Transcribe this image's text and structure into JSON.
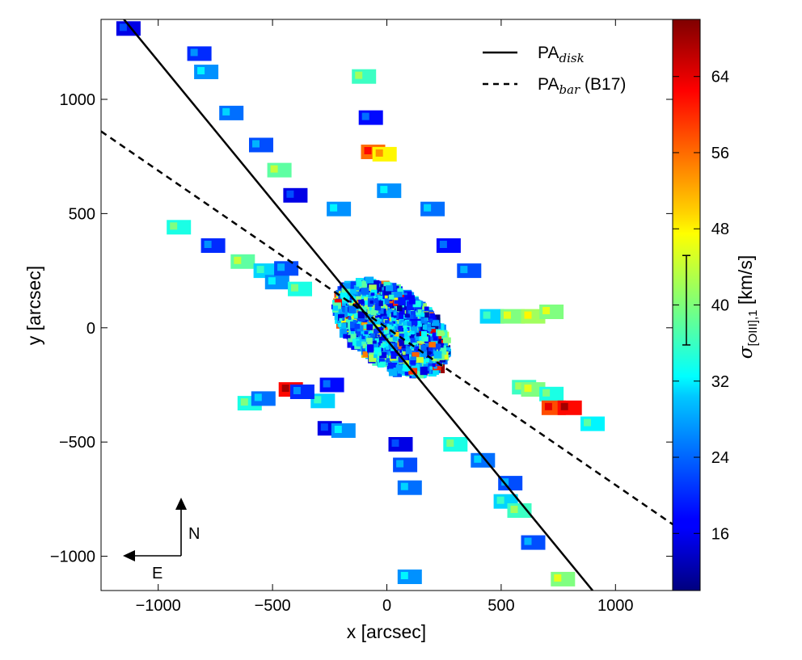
{
  "chart_data": {
    "type": "scatter",
    "title": "",
    "xlabel": "x [arcsec]",
    "ylabel": "y [arcsec]",
    "xlim": [
      -1250,
      1250
    ],
    "ylim": [
      -1150,
      1350
    ],
    "xticks": [
      -1000,
      -500,
      0,
      500,
      1000
    ],
    "xtick_labels": [
      "−1000",
      "−500",
      "0",
      "500",
      "1000"
    ],
    "yticks": [
      -1000,
      -500,
      0,
      500,
      1000
    ],
    "ytick_labels": [
      "−1000",
      "−500",
      "0",
      "500",
      "1000"
    ],
    "grid": false,
    "legend_position": "top-right",
    "lines": [
      {
        "label_main": "PA",
        "label_sub": "disk",
        "style": "solid",
        "color": "#000000",
        "x": [
          -1150,
          900
        ],
        "y": [
          1350,
          -1150
        ]
      },
      {
        "label_main": "PA",
        "label_sub": "bar",
        "label_suffix": " (B17)",
        "style": "dashed",
        "color": "#000000",
        "x": [
          -1250,
          1250
        ],
        "y": [
          860,
          -860
        ]
      }
    ],
    "colorbar": {
      "label_main": "σ",
      "label_sub": "[OIII],1",
      "label_unit": " [km/s]",
      "range": [
        10,
        70
      ],
      "ticks": [
        16,
        24,
        32,
        40,
        48,
        56,
        64
      ],
      "tick_labels": [
        "16",
        "24",
        "32",
        "40",
        "48",
        "56",
        "64"
      ],
      "colormap": "jet",
      "error_bar": {
        "center": 40.5,
        "low": 35.8,
        "high": 45.2
      }
    },
    "outer_tiles": [
      {
        "x": -1130,
        "y": 1310,
        "v": 16
      },
      {
        "x": -820,
        "y": 1200,
        "v": 20
      },
      {
        "x": -790,
        "y": 1120,
        "v": 26
      },
      {
        "x": -680,
        "y": 940,
        "v": 24
      },
      {
        "x": -550,
        "y": 800,
        "v": 22
      },
      {
        "x": -470,
        "y": 690,
        "v": 38
      },
      {
        "x": -400,
        "y": 580,
        "v": 16
      },
      {
        "x": -910,
        "y": 440,
        "v": 34
      },
      {
        "x": -760,
        "y": 360,
        "v": 20
      },
      {
        "x": -630,
        "y": 290,
        "v": 38
      },
      {
        "x": -530,
        "y": 250,
        "v": 30
      },
      {
        "x": -480,
        "y": 200,
        "v": 26
      },
      {
        "x": -440,
        "y": 260,
        "v": 22
      },
      {
        "x": -380,
        "y": 170,
        "v": 34
      },
      {
        "x": -600,
        "y": -330,
        "v": 34
      },
      {
        "x": -540,
        "y": -310,
        "v": 24
      },
      {
        "x": -280,
        "y": -320,
        "v": 30
      },
      {
        "x": -240,
        "y": -250,
        "v": 18
      },
      {
        "x": -420,
        "y": -270,
        "v": 62
      },
      {
        "x": -370,
        "y": -280,
        "v": 20
      },
      {
        "x": -250,
        "y": -440,
        "v": 16
      },
      {
        "x": -190,
        "y": -450,
        "v": 26
      },
      {
        "x": -100,
        "y": 1100,
        "v": 36
      },
      {
        "x": -70,
        "y": 920,
        "v": 18
      },
      {
        "x": -60,
        "y": 770,
        "v": 56
      },
      {
        "x": -10,
        "y": 760,
        "v": 48
      },
      {
        "x": 10,
        "y": 600,
        "v": 26
      },
      {
        "x": 200,
        "y": 520,
        "v": 24
      },
      {
        "x": 360,
        "y": 250,
        "v": 22
      },
      {
        "x": 460,
        "y": 50,
        "v": 30
      },
      {
        "x": 550,
        "y": 50,
        "v": 40
      },
      {
        "x": 640,
        "y": 50,
        "v": 42
      },
      {
        "x": 720,
        "y": 70,
        "v": 40
      },
      {
        "x": 600,
        "y": -260,
        "v": 36
      },
      {
        "x": 640,
        "y": -270,
        "v": 40
      },
      {
        "x": 720,
        "y": -290,
        "v": 34
      },
      {
        "x": 730,
        "y": -350,
        "v": 58
      },
      {
        "x": 800,
        "y": -350,
        "v": 62
      },
      {
        "x": 900,
        "y": -420,
        "v": 32
      },
      {
        "x": 60,
        "y": -510,
        "v": 16
      },
      {
        "x": 80,
        "y": -600,
        "v": 22
      },
      {
        "x": 100,
        "y": -700,
        "v": 24
      },
      {
        "x": 420,
        "y": -580,
        "v": 24
      },
      {
        "x": 540,
        "y": -680,
        "v": 22
      },
      {
        "x": 520,
        "y": -760,
        "v": 30
      },
      {
        "x": 580,
        "y": -800,
        "v": 36
      },
      {
        "x": 640,
        "y": -940,
        "v": 22
      },
      {
        "x": 100,
        "y": -1090,
        "v": 26
      },
      {
        "x": 770,
        "y": -1100,
        "v": 40
      },
      {
        "x": 300,
        "y": -510,
        "v": 34
      },
      {
        "x": -210,
        "y": 520,
        "v": 26
      },
      {
        "x": 270,
        "y": 360,
        "v": 18
      }
    ],
    "scatter_generation": {
      "count": 2400,
      "center": [
        20,
        0
      ],
      "core_radius": 280,
      "axis_ratio": 0.58,
      "pa_deg": -34,
      "seed": 7,
      "core_mean": 30,
      "core_spread": 14,
      "hot_mean": 58,
      "hot_fraction": 0.07,
      "low_fraction": 0.18
    }
  },
  "compass": {
    "north_label": "N",
    "east_label": "E"
  }
}
